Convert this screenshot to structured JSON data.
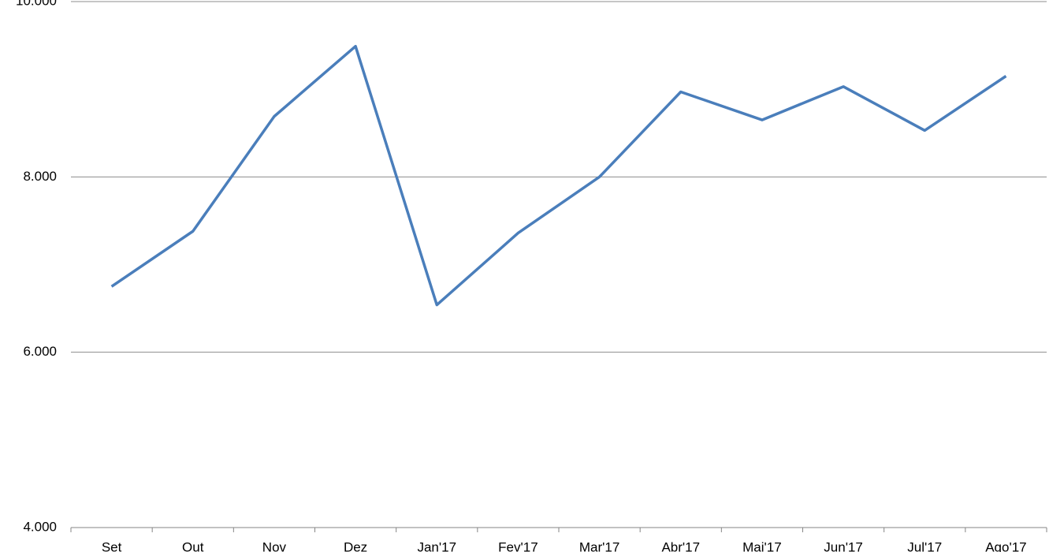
{
  "chart_data": {
    "type": "line",
    "categories": [
      "Set",
      "Out",
      "Nov",
      "Dez",
      "Jan'17",
      "Fev'17",
      "Mar'17",
      "Abr'17",
      "Mai'17",
      "Jun'17",
      "Jul'17",
      "Ago'17"
    ],
    "values": [
      6750,
      7380,
      8690,
      9490,
      6540,
      7360,
      8000,
      8970,
      8650,
      9030,
      8530,
      9150
    ],
    "color": "#4a7ebb",
    "ylim": [
      4000,
      10000
    ],
    "yticks": [
      {
        "value": 4000,
        "label": "4.000"
      },
      {
        "value": 6000,
        "label": "6.000"
      },
      {
        "value": 8000,
        "label": "8.000"
      },
      {
        "value": 10000,
        "label": "10.000"
      }
    ],
    "grid": true
  }
}
